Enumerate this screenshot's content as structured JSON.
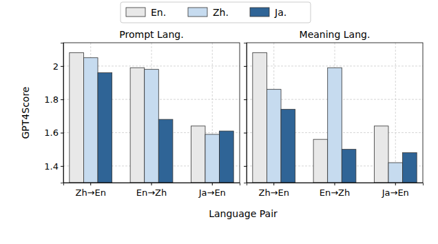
{
  "chart_data": [
    {
      "type": "bar",
      "title": "Prompt Lang.",
      "y_label": "GPT4Score",
      "x_label": "Language Pair",
      "categories": [
        "Zh→En",
        "En→Zh",
        "Ja→En"
      ],
      "series": [
        {
          "name": "En.",
          "color": "#e8e8e8",
          "values": [
            2.08,
            1.99,
            1.64
          ]
        },
        {
          "name": "Zh.",
          "color": "#c6dbef",
          "values": [
            2.05,
            1.98,
            1.59
          ]
        },
        {
          "name": "Ja.",
          "color": "#2f6496",
          "values": [
            1.96,
            1.68,
            1.61
          ]
        }
      ],
      "ylim": [
        1.3,
        2.14
      ],
      "yticks": [
        1.4,
        1.6,
        1.8,
        2.0
      ],
      "grid": true,
      "legend": "top"
    },
    {
      "type": "bar",
      "title": "Meaning Lang.",
      "categories": [
        "Zh→En",
        "En→Zh",
        "Ja→En"
      ],
      "series": [
        {
          "name": "En.",
          "color": "#e8e8e8",
          "values": [
            2.08,
            1.56,
            1.64
          ]
        },
        {
          "name": "Zh.",
          "color": "#c6dbef",
          "values": [
            1.86,
            1.99,
            1.42
          ]
        },
        {
          "name": "Ja.",
          "color": "#2f6496",
          "values": [
            1.74,
            1.5,
            1.48
          ]
        }
      ],
      "ylim": [
        1.3,
        2.14
      ],
      "yticks": [
        1.4,
        1.6,
        1.8,
        2.0
      ],
      "grid": true,
      "tick_labels": "x"
    }
  ]
}
